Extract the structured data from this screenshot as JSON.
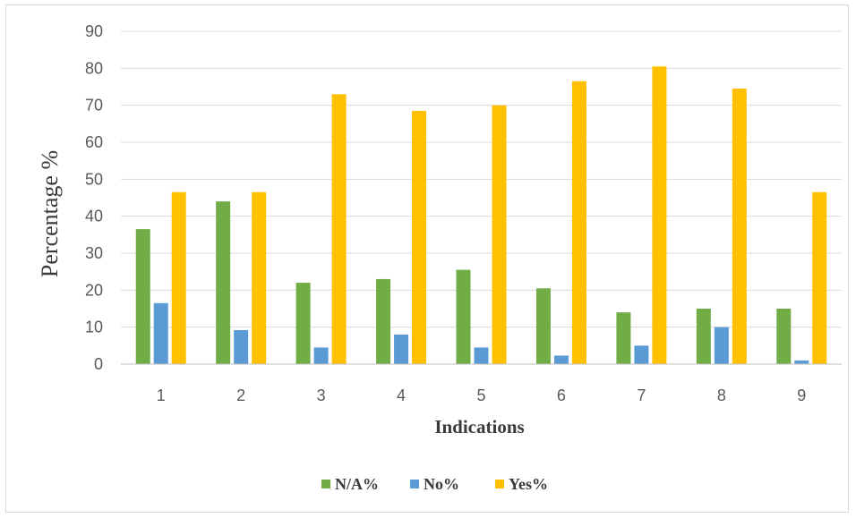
{
  "chart_data": {
    "type": "bar",
    "title": "",
    "xlabel": "Indications",
    "ylabel": "Percentage %",
    "categories": [
      "1",
      "2",
      "3",
      "4",
      "5",
      "6",
      "7",
      "8",
      "9"
    ],
    "ylim": [
      0,
      90
    ],
    "yticks": [
      "0",
      "10",
      "20",
      "30",
      "40",
      "50",
      "60",
      "70",
      "80",
      "90"
    ],
    "grid": true,
    "legend_position": "bottom",
    "series": [
      {
        "name": "N/A%",
        "color": "#70ad47",
        "values": [
          36.5,
          44,
          22,
          23,
          25.5,
          20.5,
          14,
          15,
          15
        ]
      },
      {
        "name": "No%",
        "color": "#5b9bd5",
        "values": [
          16.5,
          9.2,
          4.5,
          8,
          4.5,
          2.3,
          5,
          10,
          1
        ]
      },
      {
        "name": "Yes%",
        "color": "#ffc000",
        "values": [
          46.5,
          46.5,
          73,
          68.5,
          70,
          76.5,
          80.5,
          74.5,
          46.5
        ]
      }
    ]
  }
}
